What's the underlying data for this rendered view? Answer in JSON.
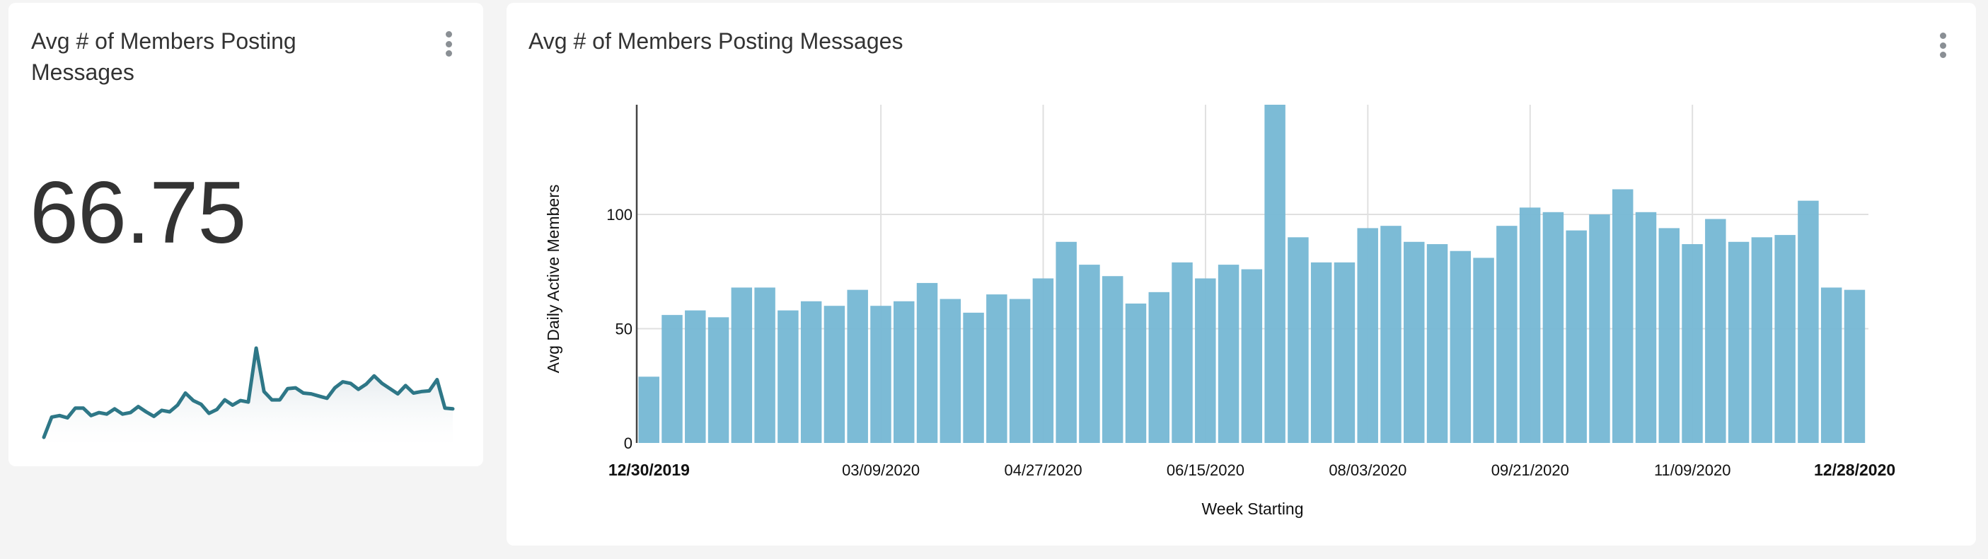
{
  "kpi_card": {
    "title": "Avg # of Members Posting Messages",
    "value": "66.75",
    "menu_icon": "kebab-menu-icon",
    "sparkline_color": "#2e7787"
  },
  "chart_card": {
    "title": "Avg # of Members Posting Messages",
    "menu_icon": "kebab-menu-icon",
    "bar_color": "#78b9d5"
  },
  "chart_data": {
    "type": "bar",
    "title": "Avg # of Members Posting Messages",
    "xlabel": "Week Starting",
    "ylabel": "Avg Daily Active Members",
    "ylim": [
      0,
      148
    ],
    "y_ticks": [
      0,
      50,
      100
    ],
    "grid": true,
    "legend": null,
    "x_tick_labels": [
      {
        "index": 0,
        "label": "12/30/2019",
        "bold": true
      },
      {
        "index": 10,
        "label": "03/09/2020",
        "bold": false
      },
      {
        "index": 17,
        "label": "04/27/2020",
        "bold": false
      },
      {
        "index": 24,
        "label": "06/15/2020",
        "bold": false
      },
      {
        "index": 31,
        "label": "08/03/2020",
        "bold": false
      },
      {
        "index": 38,
        "label": "09/21/2020",
        "bold": false
      },
      {
        "index": 45,
        "label": "11/09/2020",
        "bold": false
      },
      {
        "index": 52,
        "label": "12/28/2020",
        "bold": true
      }
    ],
    "values": [
      29,
      56,
      58,
      55,
      68,
      68,
      58,
      62,
      60,
      67,
      60,
      62,
      70,
      63,
      57,
      65,
      63,
      72,
      88,
      78,
      73,
      61,
      66,
      79,
      72,
      78,
      76,
      148,
      90,
      79,
      79,
      94,
      95,
      88,
      87,
      84,
      81,
      95,
      103,
      101,
      93,
      100,
      111,
      101,
      94,
      87,
      98,
      88,
      90,
      91,
      106,
      68,
      67
    ]
  }
}
